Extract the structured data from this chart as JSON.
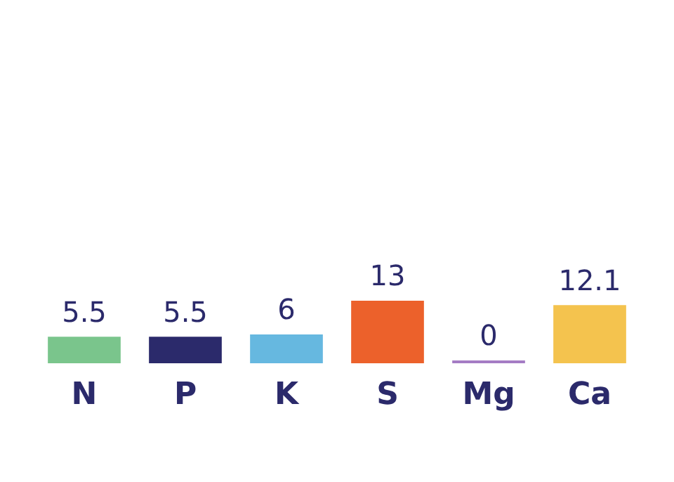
{
  "chart_data": {
    "type": "bar",
    "categories": [
      "N",
      "P",
      "K",
      "S",
      "Mg",
      "Ca"
    ],
    "values": [
      5.5,
      5.5,
      6,
      13,
      0,
      12.1
    ],
    "colors": [
      "#7ac58c",
      "#2b2a6b",
      "#66b8e0",
      "#ec612b",
      "#a57cc4",
      "#f4c34e"
    ],
    "data_labels": true,
    "grid": false,
    "legend": false
  }
}
